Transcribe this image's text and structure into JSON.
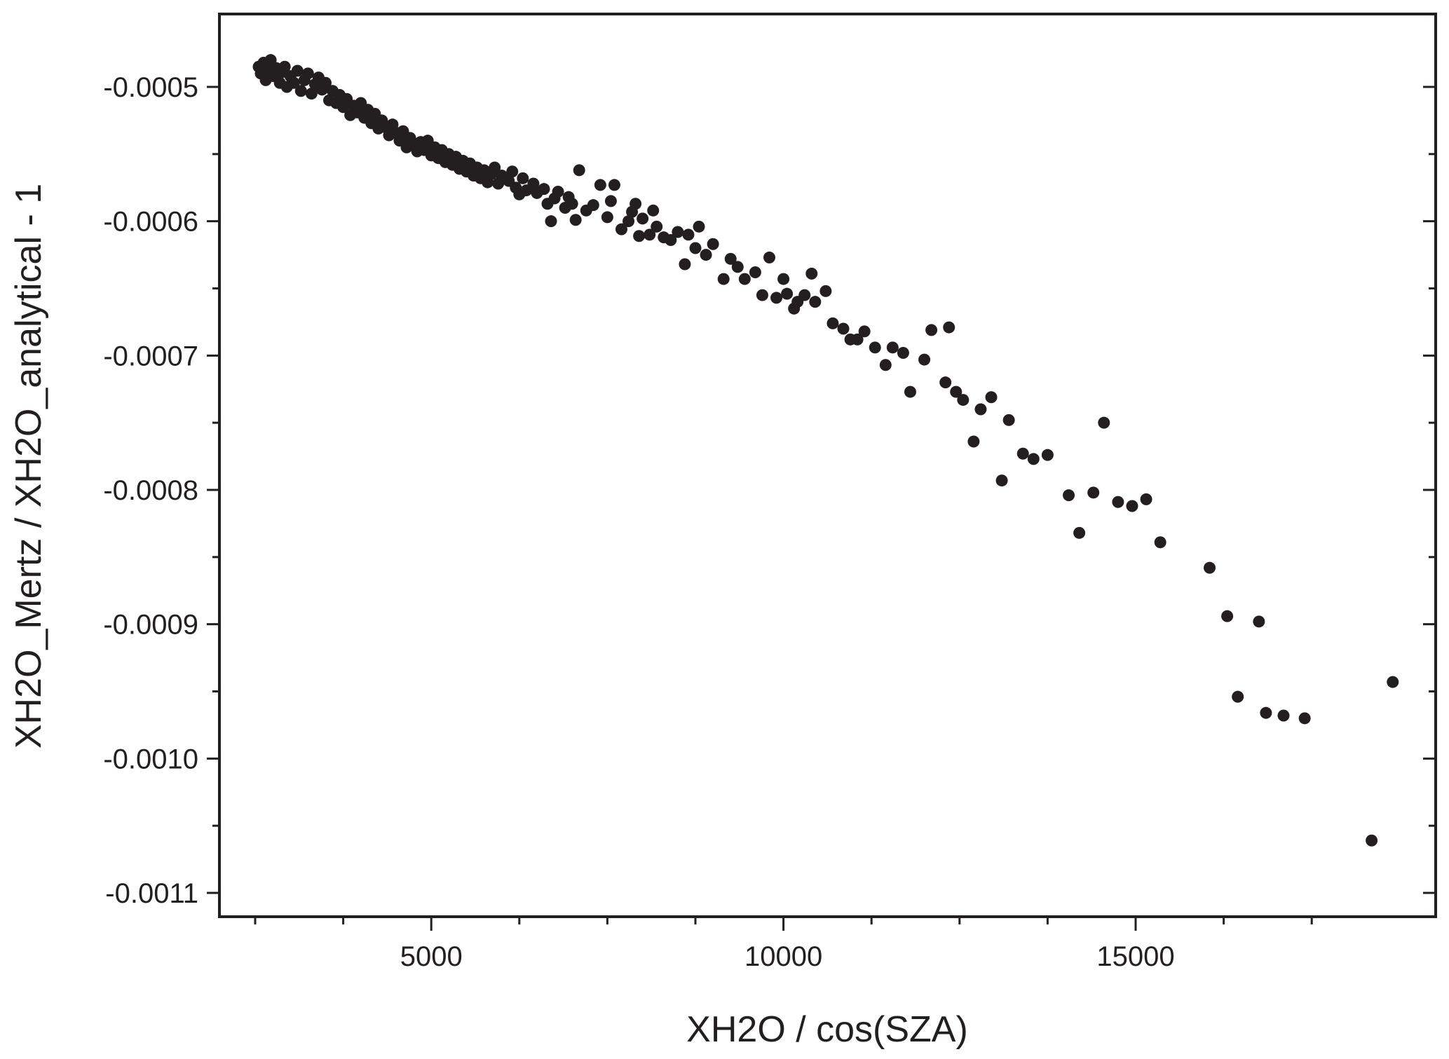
{
  "chart_data": {
    "type": "scatter",
    "title": "",
    "xlabel": "XH2O / cos(SZA)",
    "ylabel": "XH2O_Mertz / XH2O_analytical - 1",
    "xlim": [
      2000,
      19000
    ],
    "ylim": [
      -0.00115,
      -0.00044
    ],
    "x_ticks": [
      5000,
      10000,
      15000
    ],
    "x_tick_labels": [
      "5000",
      "10000",
      "15000"
    ],
    "x_minor_ticks": [
      2500,
      3750,
      6250,
      7500,
      8750,
      11250,
      12500,
      13750,
      16250,
      17500
    ],
    "y_ticks": [
      -0.0005,
      -0.0006,
      -0.0007,
      -0.0008,
      -0.0009,
      -0.001,
      -0.0011
    ],
    "y_tick_labels": [
      "-0.0005",
      "-0.0006",
      "-0.0007",
      "-0.0008",
      "-0.0009",
      "-0.0010",
      "-0.0011"
    ],
    "y_minor_ticks": [
      -0.00055,
      -0.00065,
      -0.00075,
      -0.00085,
      -0.00095,
      -0.00105
    ],
    "grid": false,
    "legend": false,
    "marker_color": "#231f20",
    "series": [
      {
        "points": [
          [
            2550,
            -0.000485
          ],
          [
            2580,
            -0.00049
          ],
          [
            2620,
            -0.000482
          ],
          [
            2650,
            -0.000495
          ],
          [
            2700,
            -0.000488
          ],
          [
            2720,
            -0.00048
          ],
          [
            2760,
            -0.000492
          ],
          [
            2800,
            -0.000486
          ],
          [
            2850,
            -0.000497
          ],
          [
            2880,
            -0.000489
          ],
          [
            2920,
            -0.000485
          ],
          [
            2950,
            -0.0005
          ],
          [
            3000,
            -0.000492
          ],
          [
            3050,
            -0.000497
          ],
          [
            3100,
            -0.000488
          ],
          [
            3150,
            -0.000503
          ],
          [
            3200,
            -0.000495
          ],
          [
            3250,
            -0.00049
          ],
          [
            3300,
            -0.000505
          ],
          [
            3350,
            -0.000498
          ],
          [
            3400,
            -0.000493
          ],
          [
            3450,
            -0.000502
          ],
          [
            3500,
            -0.000497
          ],
          [
            3550,
            -0.00051
          ],
          [
            3600,
            -0.000503
          ],
          [
            3650,
            -0.000512
          ],
          [
            3700,
            -0.000506
          ],
          [
            3750,
            -0.000515
          ],
          [
            3800,
            -0.000509
          ],
          [
            3850,
            -0.000521
          ],
          [
            3900,
            -0.000514
          ],
          [
            3950,
            -0.000519
          ],
          [
            4000,
            -0.000512
          ],
          [
            4050,
            -0.000523
          ],
          [
            4100,
            -0.000517
          ],
          [
            4150,
            -0.000527
          ],
          [
            4200,
            -0.00052
          ],
          [
            4250,
            -0.000531
          ],
          [
            4300,
            -0.000525
          ],
          [
            4350,
            -0.00053
          ],
          [
            4400,
            -0.000536
          ],
          [
            4450,
            -0.000528
          ],
          [
            4500,
            -0.000534
          ],
          [
            4550,
            -0.00054
          ],
          [
            4600,
            -0.000533
          ],
          [
            4650,
            -0.000545
          ],
          [
            4700,
            -0.000538
          ],
          [
            4750,
            -0.000542
          ],
          [
            4800,
            -0.000548
          ],
          [
            4850,
            -0.000541
          ],
          [
            4900,
            -0.000547
          ],
          [
            4950,
            -0.00054
          ],
          [
            5000,
            -0.000551
          ],
          [
            5050,
            -0.000545
          ],
          [
            5100,
            -0.000553
          ],
          [
            5150,
            -0.000547
          ],
          [
            5200,
            -0.000556
          ],
          [
            5250,
            -0.00055
          ],
          [
            5300,
            -0.000558
          ],
          [
            5350,
            -0.000552
          ],
          [
            5400,
            -0.000561
          ],
          [
            5450,
            -0.000555
          ],
          [
            5500,
            -0.000563
          ],
          [
            5550,
            -0.000557
          ],
          [
            5600,
            -0.000566
          ],
          [
            5650,
            -0.00056
          ],
          [
            5700,
            -0.000568
          ],
          [
            5750,
            -0.000562
          ],
          [
            5800,
            -0.000571
          ],
          [
            5850,
            -0.000565
          ],
          [
            5900,
            -0.00056
          ],
          [
            5950,
            -0.000572
          ],
          [
            6000,
            -0.000566
          ],
          [
            6100,
            -0.00057
          ],
          [
            6150,
            -0.000563
          ],
          [
            6200,
            -0.000575
          ],
          [
            6250,
            -0.00058
          ],
          [
            6300,
            -0.000568
          ],
          [
            6350,
            -0.000577
          ],
          [
            6450,
            -0.000572
          ],
          [
            6500,
            -0.000579
          ],
          [
            6600,
            -0.000576
          ],
          [
            6650,
            -0.000587
          ],
          [
            6700,
            -0.0006
          ],
          [
            6750,
            -0.000583
          ],
          [
            6800,
            -0.000578
          ],
          [
            6900,
            -0.00059
          ],
          [
            6950,
            -0.000582
          ],
          [
            7000,
            -0.000587
          ],
          [
            7050,
            -0.000599
          ],
          [
            7100,
            -0.000562
          ],
          [
            7200,
            -0.000592
          ],
          [
            7300,
            -0.000588
          ],
          [
            7400,
            -0.000573
          ],
          [
            7500,
            -0.000597
          ],
          [
            7550,
            -0.000585
          ],
          [
            7600,
            -0.000573
          ],
          [
            7700,
            -0.000606
          ],
          [
            7800,
            -0.0006
          ],
          [
            7850,
            -0.000593
          ],
          [
            7900,
            -0.000587
          ],
          [
            7950,
            -0.000611
          ],
          [
            8000,
            -0.000598
          ],
          [
            8100,
            -0.00061
          ],
          [
            8150,
            -0.000592
          ],
          [
            8200,
            -0.000604
          ],
          [
            8300,
            -0.000612
          ],
          [
            8400,
            -0.000614
          ],
          [
            8500,
            -0.000608
          ],
          [
            8600,
            -0.000632
          ],
          [
            8650,
            -0.00061
          ],
          [
            8750,
            -0.00062
          ],
          [
            8800,
            -0.000604
          ],
          [
            8900,
            -0.000625
          ],
          [
            9000,
            -0.000617
          ],
          [
            9150,
            -0.000643
          ],
          [
            9250,
            -0.000628
          ],
          [
            9350,
            -0.000634
          ],
          [
            9450,
            -0.000643
          ],
          [
            9600,
            -0.000638
          ],
          [
            9700,
            -0.000655
          ],
          [
            9800,
            -0.000627
          ],
          [
            9900,
            -0.000657
          ],
          [
            10000,
            -0.000643
          ],
          [
            10050,
            -0.000654
          ],
          [
            10150,
            -0.000665
          ],
          [
            10200,
            -0.00066
          ],
          [
            10300,
            -0.000655
          ],
          [
            10400,
            -0.000639
          ],
          [
            10450,
            -0.00066
          ],
          [
            10600,
            -0.000652
          ],
          [
            10700,
            -0.000676
          ],
          [
            10850,
            -0.00068
          ],
          [
            10950,
            -0.000688
          ],
          [
            11050,
            -0.000688
          ],
          [
            11150,
            -0.000682
          ],
          [
            11300,
            -0.000694
          ],
          [
            11450,
            -0.000707
          ],
          [
            11550,
            -0.000694
          ],
          [
            11700,
            -0.000698
          ],
          [
            11800,
            -0.000727
          ],
          [
            12000,
            -0.000703
          ],
          [
            12100,
            -0.000681
          ],
          [
            12300,
            -0.00072
          ],
          [
            12350,
            -0.000679
          ],
          [
            12450,
            -0.000727
          ],
          [
            12550,
            -0.000733
          ],
          [
            12700,
            -0.000764
          ],
          [
            12800,
            -0.00074
          ],
          [
            12950,
            -0.000731
          ],
          [
            13100,
            -0.000793
          ],
          [
            13200,
            -0.000748
          ],
          [
            13400,
            -0.000773
          ],
          [
            13550,
            -0.000777
          ],
          [
            13750,
            -0.000774
          ],
          [
            14050,
            -0.000804
          ],
          [
            14200,
            -0.000832
          ],
          [
            14400,
            -0.000802
          ],
          [
            14550,
            -0.00075
          ],
          [
            14750,
            -0.000809
          ],
          [
            14950,
            -0.000812
          ],
          [
            15150,
            -0.000807
          ],
          [
            15350,
            -0.000839
          ],
          [
            16050,
            -0.000858
          ],
          [
            16300,
            -0.000894
          ],
          [
            16450,
            -0.000954
          ],
          [
            16750,
            -0.000898
          ],
          [
            16850,
            -0.000966
          ],
          [
            17100,
            -0.000968
          ],
          [
            17400,
            -0.00097
          ],
          [
            18350,
            -0.001061
          ],
          [
            18650,
            -0.000943
          ]
        ]
      }
    ]
  }
}
